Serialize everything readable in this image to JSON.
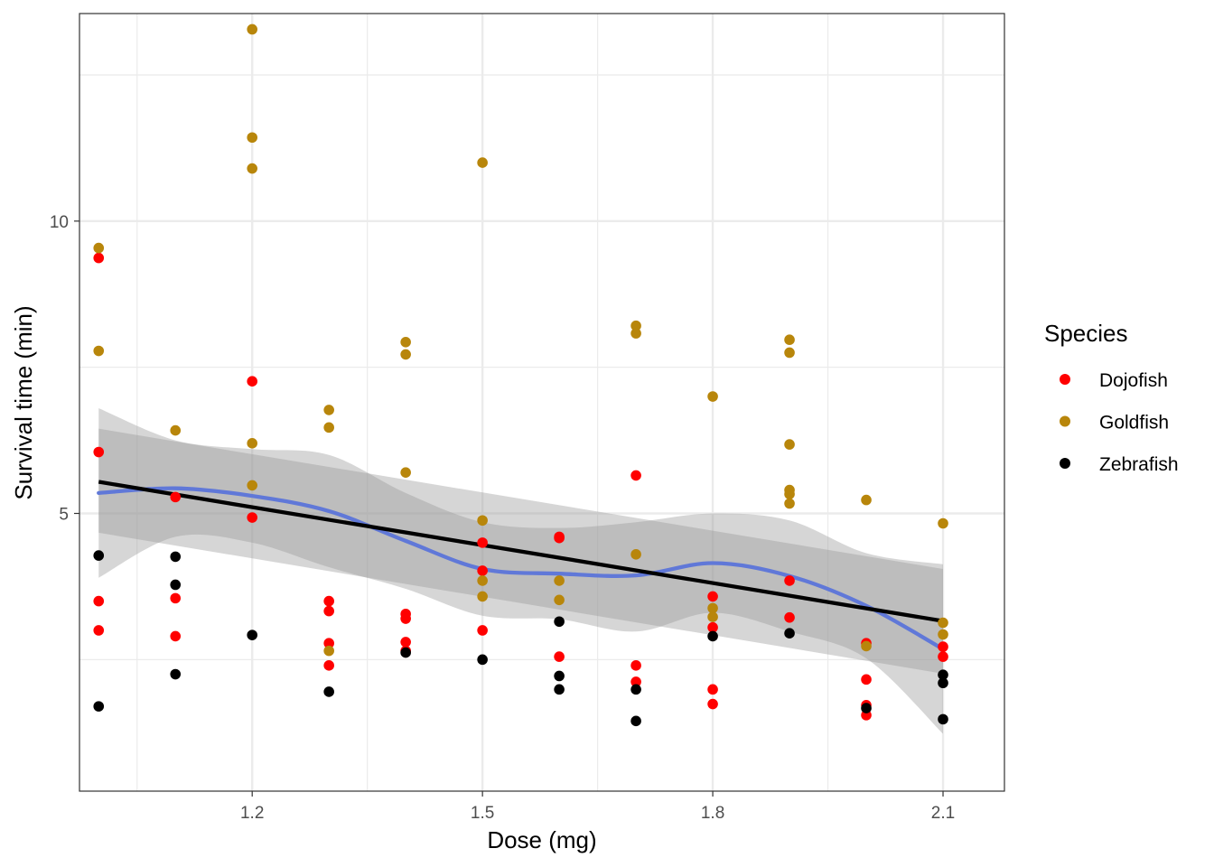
{
  "chart_data": {
    "type": "scatter",
    "title": "",
    "xlabel": "Dose (mg)",
    "ylabel": "Survival time (min)",
    "xlim": [
      0.975,
      2.18
    ],
    "ylim": [
      0.25,
      13.55
    ],
    "x_ticks": [
      1.2,
      1.5,
      1.8,
      2.1
    ],
    "x_tick_labels": [
      "1.2",
      "1.5",
      "1.8",
      "2.1"
    ],
    "x_minor_ticks": [
      1.05,
      1.35,
      1.65,
      1.95
    ],
    "y_ticks": [
      5,
      10
    ],
    "y_tick_labels": [
      "5",
      "10"
    ],
    "y_minor_ticks": [
      2.5,
      7.5,
      12.5
    ],
    "grid": true,
    "legend": {
      "title": "Species",
      "position": "right",
      "entries": [
        "Dojofish",
        "Goldfish",
        "Zebrafish"
      ]
    },
    "series": [
      {
        "name": "Dojofish",
        "color": "#ff0000",
        "points": [
          [
            1.0,
            9.37
          ],
          [
            1.0,
            6.05
          ],
          [
            1.0,
            3.5
          ],
          [
            1.0,
            3.0
          ],
          [
            1.1,
            5.28
          ],
          [
            1.1,
            3.55
          ],
          [
            1.1,
            2.9
          ],
          [
            1.2,
            7.26
          ],
          [
            1.2,
            4.93
          ],
          [
            1.3,
            3.5
          ],
          [
            1.3,
            3.33
          ],
          [
            1.3,
            2.78
          ],
          [
            1.3,
            2.4
          ],
          [
            1.4,
            3.28
          ],
          [
            1.4,
            3.2
          ],
          [
            1.4,
            2.8
          ],
          [
            1.4,
            2.65
          ],
          [
            1.5,
            4.5
          ],
          [
            1.5,
            4.02
          ],
          [
            1.5,
            3.0
          ],
          [
            1.6,
            4.6
          ],
          [
            1.6,
            4.58
          ],
          [
            1.6,
            2.55
          ],
          [
            1.7,
            5.65
          ],
          [
            1.7,
            2.4
          ],
          [
            1.7,
            2.12
          ],
          [
            1.8,
            3.58
          ],
          [
            1.8,
            3.05
          ],
          [
            1.8,
            1.99
          ],
          [
            1.8,
            1.74
          ],
          [
            1.9,
            3.85
          ],
          [
            1.9,
            3.22
          ],
          [
            2.0,
            2.78
          ],
          [
            2.0,
            2.16
          ],
          [
            2.0,
            1.72
          ],
          [
            2.0,
            1.55
          ],
          [
            2.1,
            2.72
          ],
          [
            2.1,
            2.55
          ]
        ]
      },
      {
        "name": "Goldfish",
        "color": "#b8860b",
        "points": [
          [
            1.0,
            9.54
          ],
          [
            1.0,
            7.78
          ],
          [
            1.1,
            6.42
          ],
          [
            1.2,
            13.28
          ],
          [
            1.2,
            11.43
          ],
          [
            1.2,
            10.9
          ],
          [
            1.2,
            6.2
          ],
          [
            1.2,
            5.48
          ],
          [
            1.3,
            6.77
          ],
          [
            1.3,
            6.47
          ],
          [
            1.3,
            2.65
          ],
          [
            1.4,
            7.93
          ],
          [
            1.4,
            7.72
          ],
          [
            1.4,
            5.7
          ],
          [
            1.5,
            11.0
          ],
          [
            1.5,
            4.88
          ],
          [
            1.5,
            3.85
          ],
          [
            1.5,
            3.58
          ],
          [
            1.6,
            3.85
          ],
          [
            1.6,
            3.52
          ],
          [
            1.7,
            8.21
          ],
          [
            1.7,
            8.08
          ],
          [
            1.7,
            4.3
          ],
          [
            1.8,
            7.0
          ],
          [
            1.8,
            3.38
          ],
          [
            1.8,
            3.23
          ],
          [
            1.9,
            7.97
          ],
          [
            1.9,
            7.75
          ],
          [
            1.9,
            6.18
          ],
          [
            1.9,
            5.4
          ],
          [
            1.9,
            5.33
          ],
          [
            1.9,
            5.17
          ],
          [
            2.0,
            5.23
          ],
          [
            2.0,
            2.73
          ],
          [
            2.1,
            4.83
          ],
          [
            2.1,
            3.13
          ],
          [
            2.1,
            2.93
          ]
        ]
      },
      {
        "name": "Zebrafish",
        "color": "#000000",
        "points": [
          [
            1.0,
            4.28
          ],
          [
            1.0,
            1.7
          ],
          [
            1.1,
            4.26
          ],
          [
            1.1,
            3.78
          ],
          [
            1.1,
            2.25
          ],
          [
            1.2,
            2.92
          ],
          [
            1.3,
            1.95
          ],
          [
            1.4,
            2.62
          ],
          [
            1.5,
            2.5
          ],
          [
            1.6,
            3.15
          ],
          [
            1.6,
            2.22
          ],
          [
            1.6,
            1.99
          ],
          [
            1.7,
            1.99
          ],
          [
            1.7,
            1.45
          ],
          [
            1.8,
            2.9
          ],
          [
            1.9,
            2.95
          ],
          [
            2.0,
            1.67
          ],
          [
            2.1,
            2.24
          ],
          [
            2.1,
            2.1
          ],
          [
            2.1,
            1.48
          ]
        ]
      }
    ],
    "smooth_loess": {
      "color": "#6078d8",
      "points": [
        [
          1.0,
          5.35
        ],
        [
          1.1,
          5.43
        ],
        [
          1.2,
          5.3
        ],
        [
          1.3,
          5.04
        ],
        [
          1.4,
          4.53
        ],
        [
          1.5,
          4.05
        ],
        [
          1.6,
          3.97
        ],
        [
          1.7,
          3.94
        ],
        [
          1.8,
          4.15
        ],
        [
          1.9,
          3.93
        ],
        [
          2.0,
          3.42
        ],
        [
          2.1,
          2.68
        ]
      ],
      "ci_upper": [
        6.8,
        6.25,
        6.1,
        6.0,
        5.35,
        4.85,
        4.75,
        4.85,
        5.0,
        4.88,
        4.32,
        4.13
      ],
      "ci_lower": [
        3.9,
        4.6,
        4.5,
        4.08,
        3.71,
        3.25,
        3.19,
        2.98,
        3.3,
        2.98,
        2.52,
        1.23
      ]
    },
    "linear_fit": {
      "color": "#000000",
      "points": [
        [
          1.0,
          5.54
        ],
        [
          2.1,
          3.16
        ]
      ],
      "ci_upper": [
        6.45,
        4.05
      ],
      "ci_lower": [
        4.67,
        2.26
      ]
    }
  }
}
